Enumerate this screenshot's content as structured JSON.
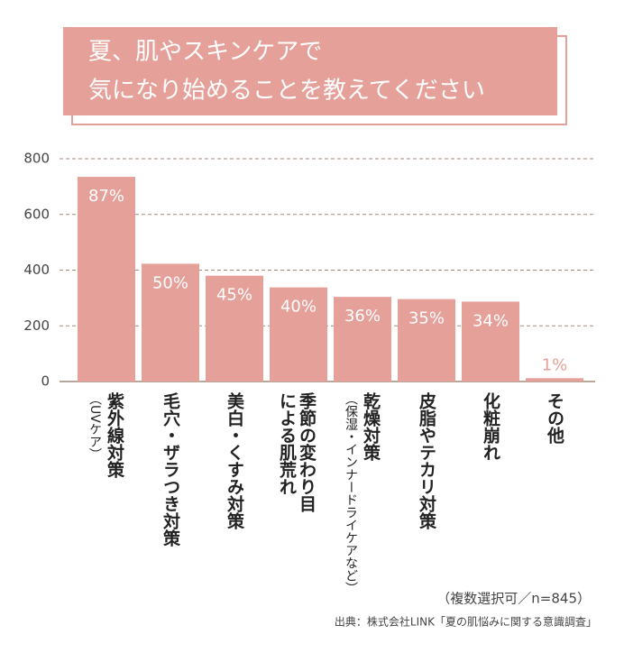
{
  "chart_data": {
    "type": "bar",
    "title": [
      "夏、肌やスキンケアで",
      "気になり始めることを教えてください"
    ],
    "categories": [
      [
        "紫外線対策",
        "（UVケア）"
      ],
      [
        "毛穴・ザラつき対策"
      ],
      [
        "美白・くすみ対策"
      ],
      [
        "季節の変わり目",
        "による肌荒れ"
      ],
      [
        "乾燥対策",
        "（保湿・インナードライケアなど）"
      ],
      [
        "皮脂やテカリ対策"
      ],
      [
        "化粧崩れ"
      ],
      [
        "その他"
      ]
    ],
    "values": [
      735,
      423,
      380,
      338,
      304,
      296,
      287,
      12
    ],
    "value_labels": [
      "87%",
      "50%",
      "45%",
      "40%",
      "36%",
      "35%",
      "34%",
      "1%"
    ],
    "color": "#e6a09a",
    "ylim": [
      0,
      800
    ],
    "yticks": [
      0,
      200,
      400,
      600,
      800
    ],
    "grid": true,
    "note": "（複数選択可／n=845）",
    "source": "出典：株式会社LINK「夏の肌悩みに関する意識調査」"
  }
}
